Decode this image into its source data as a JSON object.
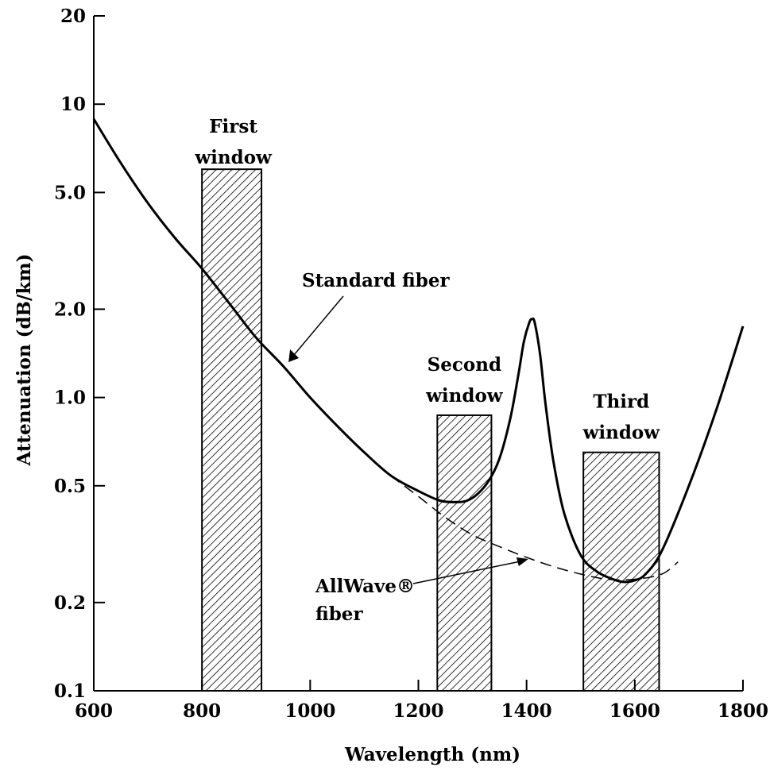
{
  "chart_data": {
    "type": "line",
    "xlabel": "Wavelength (nm)",
    "ylabel": "Attenuation (dB/km)",
    "xlim": [
      600,
      1800
    ],
    "ylim": [
      0.1,
      20
    ],
    "y_scale": "log",
    "x_ticks": [
      600,
      800,
      1000,
      1200,
      1400,
      1600,
      1800
    ],
    "y_ticks": [
      {
        "value": 0.1,
        "label": "0.1"
      },
      {
        "value": 0.2,
        "label": "0.2"
      },
      {
        "value": 0.5,
        "label": "0.5"
      },
      {
        "value": 1.0,
        "label": "1.0"
      },
      {
        "value": 2.0,
        "label": "2.0"
      },
      {
        "value": 5.0,
        "label": "5.0"
      },
      {
        "value": 10,
        "label": "10"
      },
      {
        "value": 20,
        "label": "20"
      }
    ],
    "grid": false,
    "windows": [
      {
        "label_lines": [
          "First",
          "window"
        ],
        "x_range": [
          800,
          910
        ],
        "top": 6.0
      },
      {
        "label_lines": [
          "Second",
          "window"
        ],
        "x_range": [
          1235,
          1335
        ],
        "top": 0.87
      },
      {
        "label_lines": [
          "Third",
          "window"
        ],
        "x_range": [
          1505,
          1645
        ],
        "top": 0.65
      }
    ],
    "series": [
      {
        "name": "Standard fiber",
        "style": "solid",
        "x": [
          600,
          650,
          700,
          750,
          800,
          850,
          900,
          950,
          1000,
          1050,
          1100,
          1150,
          1200,
          1240,
          1270,
          1290,
          1310,
          1330,
          1350,
          1370,
          1385,
          1395,
          1405,
          1410,
          1415,
          1425,
          1435,
          1450,
          1470,
          1500,
          1530,
          1560,
          1580,
          1600,
          1620,
          1650,
          1700,
          1750,
          1800
        ],
        "y": [
          8.9,
          6.3,
          4.6,
          3.5,
          2.75,
          2.1,
          1.6,
          1.28,
          1.0,
          0.8,
          0.65,
          0.54,
          0.48,
          0.445,
          0.44,
          0.445,
          0.47,
          0.52,
          0.62,
          0.85,
          1.2,
          1.55,
          1.8,
          1.85,
          1.8,
          1.4,
          0.95,
          0.6,
          0.4,
          0.29,
          0.255,
          0.24,
          0.235,
          0.238,
          0.25,
          0.3,
          0.5,
          0.9,
          1.75
        ]
      },
      {
        "name": "AllWave® fiber",
        "style": "dashed",
        "x": [
          1100,
          1150,
          1200,
          1250,
          1300,
          1350,
          1400,
          1450,
          1500,
          1550,
          1600,
          1650,
          1680
        ],
        "y": [
          0.65,
          0.54,
          0.46,
          0.39,
          0.34,
          0.31,
          0.285,
          0.265,
          0.25,
          0.24,
          0.24,
          0.25,
          0.275
        ]
      }
    ],
    "annotations": [
      {
        "id": "standard",
        "text": "Standard fiber",
        "point_at": [
          960,
          1.32
        ]
      },
      {
        "id": "allwave",
        "text_lines": [
          "AllWave®",
          "fiber"
        ],
        "point_at": [
          1415,
          0.285
        ]
      }
    ]
  }
}
